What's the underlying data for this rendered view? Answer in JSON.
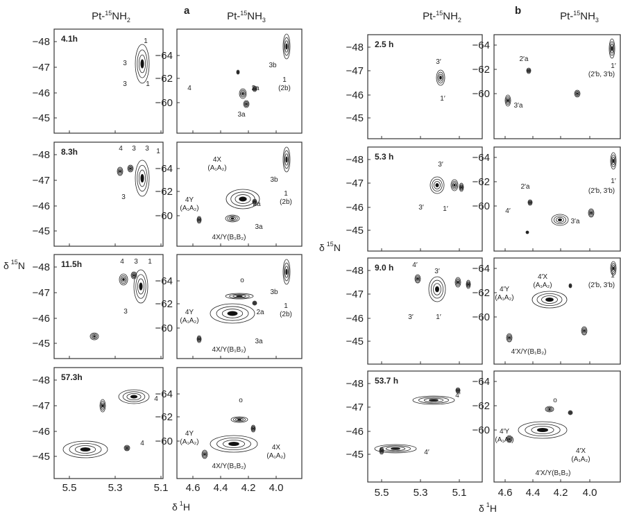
{
  "figure": {
    "panel_letters": [
      "a",
      "b"
    ],
    "y_axis_label": {
      "symbol": "δ",
      "isotope": "15",
      "nucleus": "N"
    },
    "x_axis_label": {
      "symbol": "δ",
      "isotope": "1",
      "nucleus": "H"
    },
    "columns": [
      {
        "header": {
          "prefix": "Pt-",
          "isotope": "15",
          "group": "NH",
          "subscript": "2"
        },
        "y_ticks": [
          "−48",
          "−47",
          "−46",
          "−45"
        ],
        "x_ticks": [
          "5.5",
          "5.3",
          "5.1"
        ],
        "panels": [
          {
            "time": "4.1h",
            "annotations": [
              "1",
              "3",
              "3",
              "1"
            ]
          },
          {
            "time": "8.3h",
            "annotations": [
              "4",
              "3",
              "3",
              "1",
              "3"
            ]
          },
          {
            "time": "11.5h",
            "annotations": [
              "4",
              "3",
              "1",
              "3"
            ]
          },
          {
            "time": "57.3h",
            "annotations": [
              "4",
              "4"
            ]
          }
        ]
      },
      {
        "header": {
          "prefix": "Pt-",
          "isotope": "15",
          "group": "NH",
          "subscript": "3"
        },
        "y_ticks": [
          "−64",
          "−62",
          "−60"
        ],
        "x_ticks": [
          "4.6",
          "4.4",
          "4.2",
          "4.0"
        ],
        "panels": [
          {
            "annotations": [
              "3b",
              "1",
              "(2b)",
              "4",
              "2a",
              "3a"
            ]
          },
          {
            "annotations": [
              "4X",
              "(A₁A₂)",
              "4Y",
              "(A₁A₂)",
              "3b",
              "1",
              "(2b)",
              "2a",
              "3a",
              "4X/Y(B₁B₂)"
            ]
          },
          {
            "annotations": [
              "o",
              "3b",
              "1",
              "(2b)",
              "2a",
              "4Y",
              "(A₁A₂)",
              "3a",
              "4X/Y(B₁B₂)"
            ]
          },
          {
            "annotations": [
              "o",
              "4Y",
              "(A₁A₂)",
              "4X",
              "(A₁A₂)",
              "4X/Y(B₁B₂)"
            ]
          }
        ]
      },
      {
        "header": {
          "prefix": "Pt-",
          "isotope": "15",
          "group": "NH",
          "subscript": "2"
        },
        "y_ticks": [
          "−48",
          "−47",
          "−46",
          "−45"
        ],
        "x_ticks": [
          "5.5",
          "5.3",
          "5.1"
        ],
        "panels": [
          {
            "time": "2.5 h",
            "annotations": [
              "3′",
              "1′"
            ]
          },
          {
            "time": "5.3 h",
            "annotations": [
              "3′",
              "3′",
              "1′"
            ]
          },
          {
            "time": "9.0 h",
            "annotations": [
              "4′",
              "3′",
              "3′",
              "1′"
            ]
          },
          {
            "time": "53.7 h",
            "annotations": [
              "4′",
              "4′"
            ]
          }
        ]
      },
      {
        "header": {
          "prefix": "Pt-",
          "isotope": "15",
          "group": "NH",
          "subscript": "3"
        },
        "y_ticks": [
          "−64",
          "−62",
          "−60"
        ],
        "x_ticks": [
          "4.6",
          "4.4",
          "4.2",
          "4.0"
        ],
        "panels": [
          {
            "annotations": [
              "2′a",
              "1′",
              "(2′b, 3′b)",
              "3′a"
            ]
          },
          {
            "annotations": [
              "2′a",
              "4′",
              "3′a",
              "1′",
              "(2′b, 3′b)"
            ]
          },
          {
            "annotations": [
              "4′X",
              "(A₁A₂)",
              "4′Y",
              "(A₁A₂)",
              "1′",
              "(2′b, 3′b)",
              "4′X/Y(B₁B₂)"
            ]
          },
          {
            "annotations": [
              "o",
              "4′Y",
              "(A₁A₂)",
              "4′X",
              "(A₁A₂)",
              "4′X/Y(B₁B₂)"
            ]
          }
        ]
      }
    ]
  }
}
